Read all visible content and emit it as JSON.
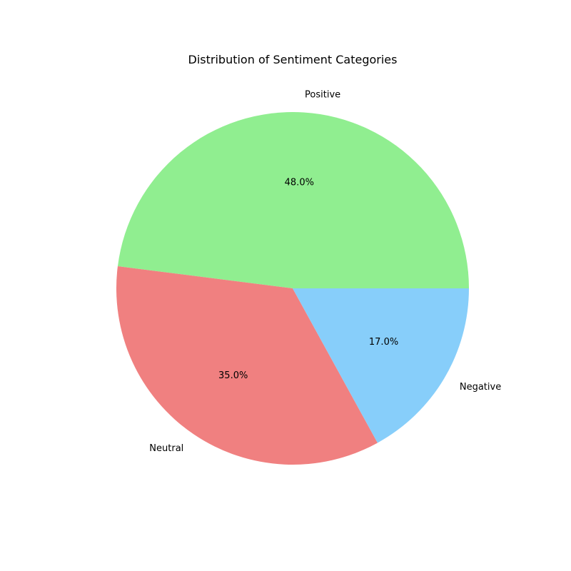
{
  "chart_data": {
    "type": "pie",
    "title": "Distribution of Sentiment Categories",
    "slices": [
      {
        "label": "Positive",
        "value": 48.0,
        "pct_text": "48.0%",
        "color": "#90EE90"
      },
      {
        "label": "Neutral",
        "value": 35.0,
        "pct_text": "35.0%",
        "color": "#F08080"
      },
      {
        "label": "Negative",
        "value": 17.0,
        "pct_text": "17.0%",
        "color": "#87CEFA"
      }
    ],
    "start_angle_deg": 0,
    "direction": "counterclockwise",
    "legend": "none"
  }
}
